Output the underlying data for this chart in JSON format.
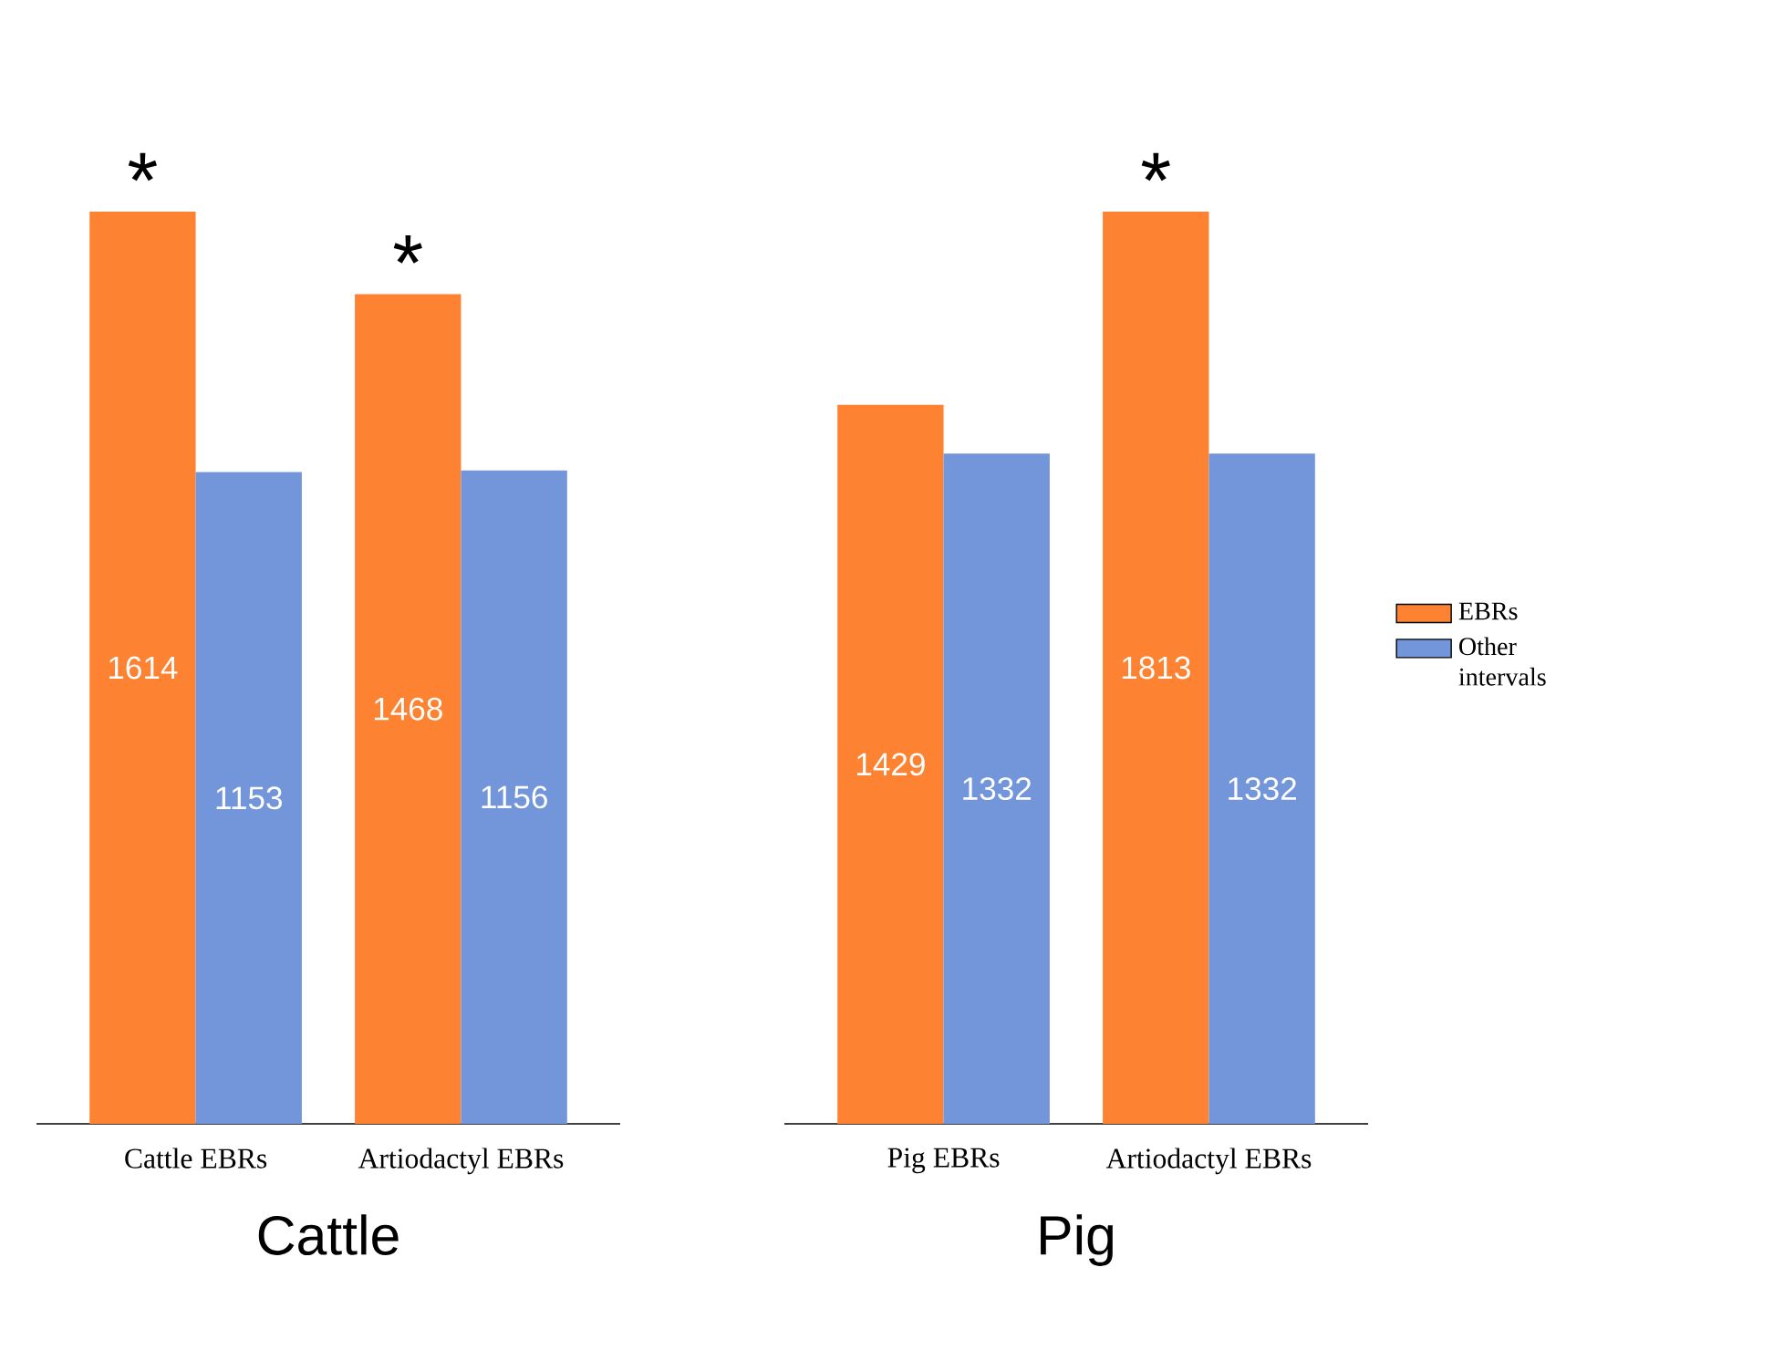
{
  "chart_data": [
    {
      "type": "bar",
      "title": "Cattle",
      "categories": [
        "Cattle EBRs",
        "Artiodactyl EBRs"
      ],
      "series": [
        {
          "color": "#fd8232",
          "values": [
            1614,
            1468
          ]
        },
        {
          "color": "#7396db",
          "values": [
            1153,
            1156
          ]
        }
      ],
      "data_labels": true,
      "annotations": [
        {
          "text": "*",
          "x": "Cattle EBRs",
          "y": 1614
        },
        {
          "text": "*",
          "x": "Artiodactyl EBRs",
          "y": 1468
        }
      ]
    },
    {
      "type": "bar",
      "title": "Pig",
      "categories": [
        "Pig EBRs",
        "Artiodactyl EBRs"
      ],
      "series": [
        {
          "name": "EBRs",
          "color": "#fd8232",
          "values": [
            1429,
            1813
          ]
        },
        {
          "name": "Other intervals",
          "color": "#7396db",
          "values": [
            1332,
            1332
          ]
        }
      ],
      "data_labels": true,
      "legend": "right",
      "annotations": [
        {
          "text": "*",
          "x": "Artiodactyl EBRs",
          "y": 1813
        }
      ]
    }
  ]
}
